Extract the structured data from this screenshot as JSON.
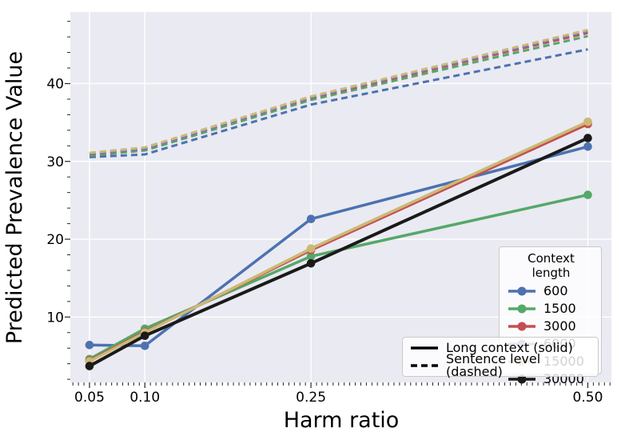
{
  "chart_data": {
    "type": "line",
    "title": "",
    "xlabel": "Harm ratio",
    "ylabel": "Predicted Prevalence Value",
    "x": [
      0.05,
      0.1,
      0.25,
      0.5
    ],
    "x_tick_labels": [
      "0.05",
      "0.10",
      "0.25",
      "0.50"
    ],
    "y_ticks": [
      10,
      20,
      30,
      40
    ],
    "y_tick_labels": [
      "10",
      "20",
      "30",
      "40"
    ],
    "xlim": [
      0.0327,
      0.5213
    ],
    "ylim": [
      1.6,
      49.2
    ],
    "x_minor_step": 0.005,
    "y_minor_step": 2,
    "grid": "major-only, white gridlines on lavender panel",
    "panel_color": "#EAEAF2",
    "gridline_color": "#FFFFFF",
    "legend_position": "lower right",
    "series": [
      {
        "name": "600",
        "color": "#4C72B0",
        "solid": [
          6.4,
          6.3,
          22.6,
          31.9
        ],
        "dashed": [
          30.55,
          30.9,
          37.3,
          44.4
        ]
      },
      {
        "name": "1500",
        "color": "#55A868",
        "solid": [
          4.6,
          8.5,
          17.8,
          25.7
        ],
        "dashed": [
          30.75,
          31.4,
          37.9,
          46.1
        ]
      },
      {
        "name": "3000",
        "color": "#C44E52",
        "solid": [
          4.4,
          8.1,
          18.6,
          34.8
        ],
        "dashed": [
          30.95,
          31.65,
          38.15,
          46.5
        ]
      },
      {
        "name": "6000",
        "color": "#8172B2",
        "solid": [
          4.35,
          8.05,
          18.7,
          34.95
        ],
        "dashed": [
          31.0,
          31.6,
          38.2,
          46.7
        ]
      },
      {
        "name": "15000",
        "color": "#CCB974",
        "solid": [
          4.3,
          8.0,
          18.8,
          35.1
        ],
        "dashed": [
          31.1,
          31.8,
          38.35,
          46.9
        ]
      },
      {
        "name": "30000",
        "color": "#1a1a1a",
        "solid": [
          3.7,
          7.6,
          16.9,
          33.0
        ],
        "dashed": null
      }
    ]
  },
  "legend_context": {
    "title": "Context length",
    "entries": [
      {
        "label": "600",
        "color": "#4C72B0"
      },
      {
        "label": "1500",
        "color": "#55A868"
      },
      {
        "label": "3000",
        "color": "#C44E52"
      },
      {
        "label": "6000",
        "color": "#8172B2"
      },
      {
        "label": "15000",
        "color": "#CCB974"
      },
      {
        "label": "30000",
        "color": "#1a1a1a"
      }
    ]
  },
  "legend_style": {
    "entries": [
      {
        "label": "Long context (solid)",
        "style": "solid",
        "color": "#000000"
      },
      {
        "label": "Sentence level (dashed)",
        "style": "dashed",
        "color": "#000000"
      }
    ]
  }
}
